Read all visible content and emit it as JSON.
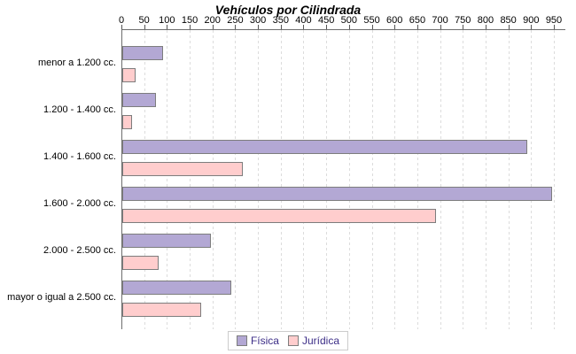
{
  "title": "Vehículos por Cilindrada",
  "chart_data": {
    "type": "bar",
    "orientation": "horizontal",
    "title": "Vehículos por Cilindrada",
    "categories": [
      "menor a 1.200 cc.",
      "1.200 - 1.400 cc.",
      "1.400 - 1.600 cc.",
      "1.600 - 2.000 cc.",
      "2.000 - 2.500 cc.",
      "mayor o igual a 2.500 cc."
    ],
    "series": [
      {
        "name": "Física",
        "color": "#b3a8d4",
        "values": [
          85,
          70,
          885,
          940,
          190,
          235
        ]
      },
      {
        "name": "Jurídica",
        "color": "#ffcdcd",
        "values": [
          25,
          18,
          260,
          685,
          75,
          170
        ]
      }
    ],
    "xlim": [
      0,
      950
    ],
    "x_ticks": [
      0,
      50,
      100,
      150,
      200,
      250,
      300,
      350,
      400,
      450,
      500,
      550,
      600,
      650,
      700,
      750,
      800,
      850,
      900,
      950
    ],
    "grid": "vertical-dashed",
    "legend_position": "bottom",
    "xlabel": "",
    "ylabel": ""
  },
  "legend": {
    "items": [
      {
        "label": "Física",
        "color": "#b3a8d4"
      },
      {
        "label": "Jurídica",
        "color": "#ffcdcd"
      }
    ]
  },
  "colors": {
    "fisica": "#b3a8d4",
    "juridica": "#ffcdcd",
    "bar_border": "#7d7d7d",
    "axis": "#6e6e6e",
    "gridline": "#dcdcdc",
    "legend_text": "#3c2e87",
    "legend_border": "#cccccc",
    "background": "#ffffff"
  }
}
